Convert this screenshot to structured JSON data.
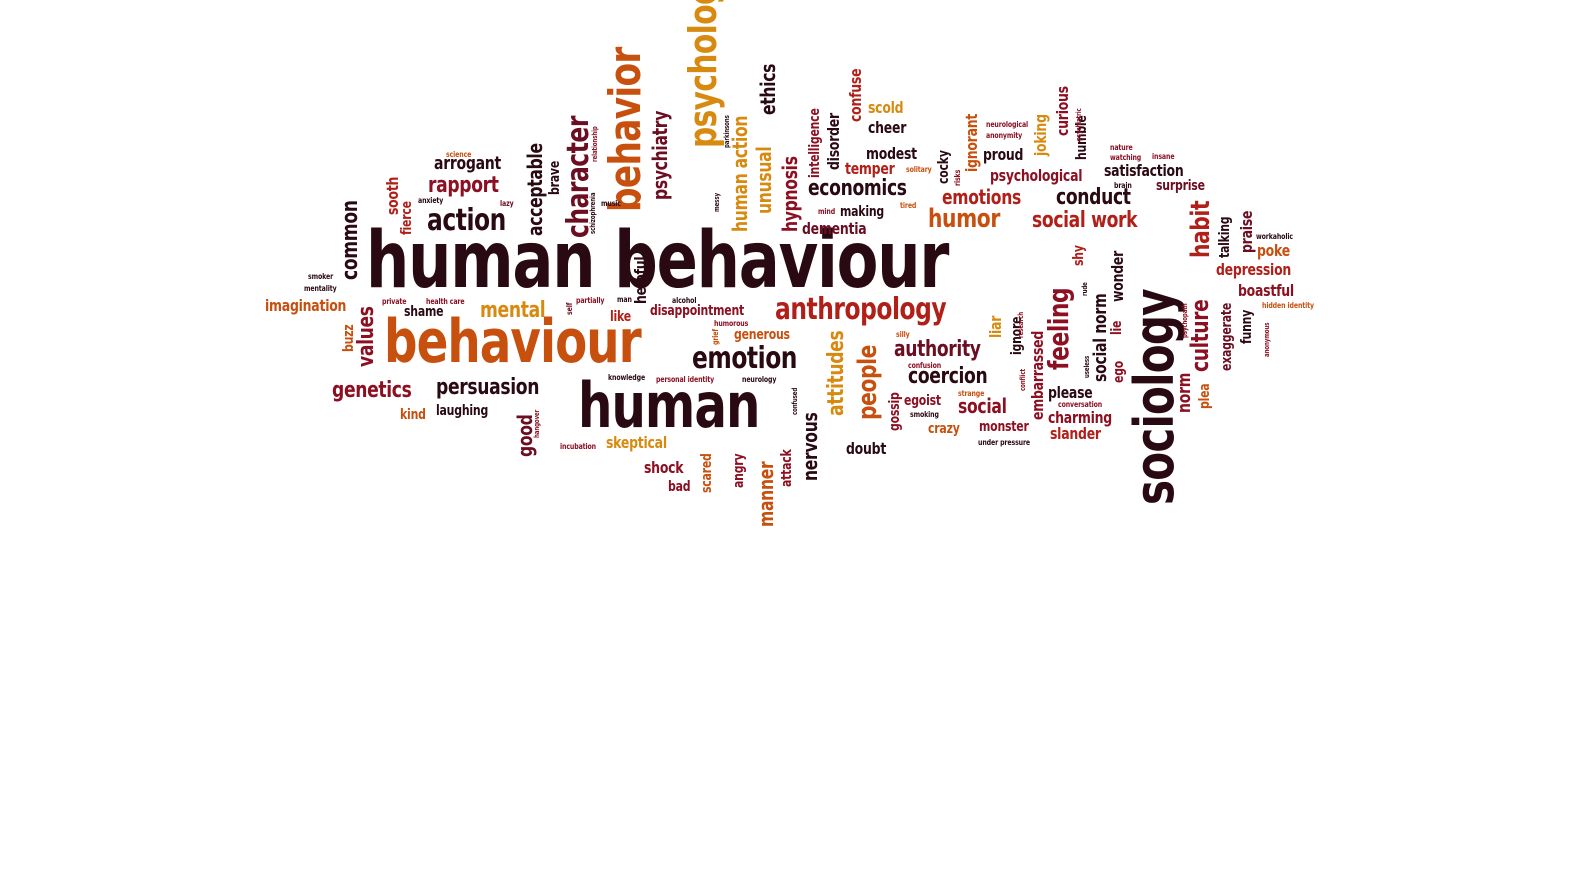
{
  "palette": {
    "dark": "#2a0a12",
    "crimson": "#8c1022",
    "red": "#b02019",
    "orange": "#c8500f",
    "amber": "#d88a10",
    "maroon": "#6b0e22"
  },
  "words": [
    "human behaviour",
    "behaviour",
    "human",
    "sociology",
    "behavior",
    "psychology",
    "anthropology",
    "emotion",
    "character",
    "psychiatry",
    "humor",
    "social work",
    "emotions",
    "conduct",
    "economics",
    "coercion",
    "authority",
    "feeling",
    "people",
    "attitudes",
    "persuasion",
    "genetics",
    "mental",
    "action",
    "rapport",
    "arrogant",
    "acceptable",
    "brave",
    "human action",
    "unusual",
    "ethics",
    "hypnosis",
    "intelligence",
    "disorder",
    "confuse",
    "scold",
    "cheer",
    "modest",
    "temper",
    "making",
    "dementia",
    "cocky",
    "ignorant",
    "proud",
    "psychological",
    "joking",
    "curious",
    "humble",
    "satisfaction",
    "surprise",
    "habit",
    "culture",
    "praise",
    "talking",
    "poke",
    "depression",
    "boastful",
    "exaggerate",
    "funny",
    "imagination",
    "common",
    "values",
    "buzz",
    "shame",
    "like",
    "disappointment",
    "generous",
    "helpful",
    "good",
    "laughing",
    "kind",
    "skeptical",
    "shock",
    "bad",
    "scared",
    "angry",
    "manner",
    "attack",
    "nervous",
    "doubt",
    "gossip",
    "egoist",
    "crazy",
    "social",
    "monster",
    "embarrassed",
    "ignore",
    "liar",
    "shy",
    "social norm",
    "wonder",
    "lie",
    "ego",
    "please",
    "charming",
    "slander",
    "norm",
    "plea",
    "sooth",
    "fierce",
    "science",
    "relationship",
    "schizophrenia",
    "anxiety",
    "lazy",
    "music",
    "parkinsons",
    "messy",
    "mind",
    "tired",
    "solitary",
    "risks",
    "neurological",
    "anonymity",
    "psychiatric",
    "nature",
    "watching",
    "insane",
    "brain",
    "workaholic",
    "hidden identity",
    "smoker",
    "mentality",
    "private",
    "health care",
    "partially",
    "man",
    "alcohol",
    "self",
    "grief",
    "humorous",
    "silly",
    "confusion",
    "knowledge",
    "personal identity",
    "neurology",
    "confused",
    "hangover",
    "incubation",
    "strange",
    "smoking",
    "under pressure",
    "conflict",
    "useless",
    "conversation",
    "rude",
    "research",
    "psychopath",
    "anonymous",
    "lie"
  ]
}
